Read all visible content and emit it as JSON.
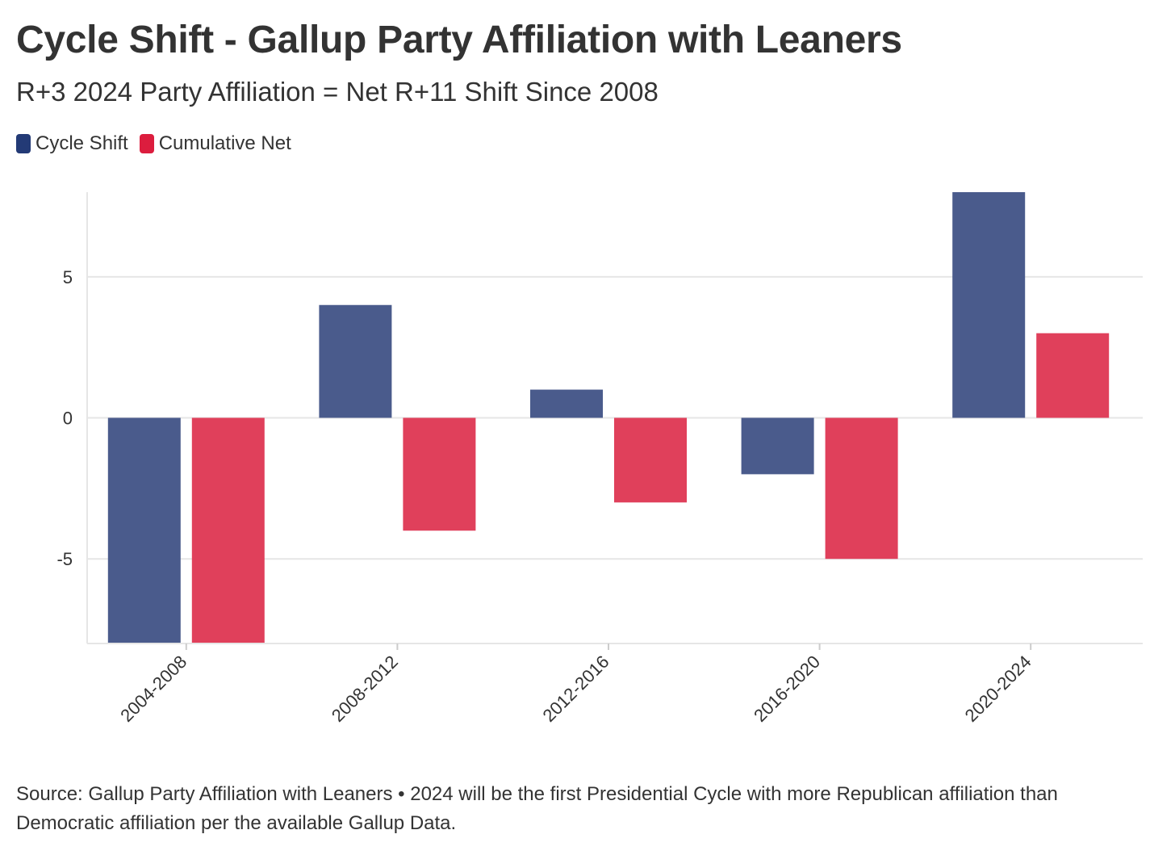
{
  "header": {
    "title": "Cycle Shift - Gallup Party Affiliation with Leaners",
    "subtitle": "R+3 2024 Party Affiliation = Net R+11 Shift Since 2008"
  },
  "legend": {
    "items": [
      {
        "label": "Cycle Shift",
        "color": "#233a76"
      },
      {
        "label": "Cumulative Net",
        "color": "#dc1d3e"
      }
    ]
  },
  "chart_data": {
    "type": "bar",
    "categories": [
      "2004-2008",
      "2008-2012",
      "2012-2016",
      "2016-2020",
      "2020-2024"
    ],
    "series": [
      {
        "name": "Cycle Shift",
        "color": "#4a5b8c",
        "values": [
          -8,
          4,
          1,
          -2,
          8
        ]
      },
      {
        "name": "Cumulative Net",
        "color": "#e0405b",
        "values": [
          -8,
          -4,
          -3,
          -5,
          3
        ]
      }
    ],
    "ylim": [
      -8,
      8
    ],
    "yticks": [
      -5,
      0,
      5
    ],
    "ytick_labels": [
      "-5",
      "0",
      "5"
    ],
    "xlabel": "",
    "ylabel": "",
    "grid": true,
    "legend_position": "top-left"
  },
  "footer": {
    "source": "Source: Gallup Party Affiliation with Leaners • 2024 will be the first Presidential Cycle with more Republican affiliation than Democratic affiliation per the available Gallup Data."
  }
}
